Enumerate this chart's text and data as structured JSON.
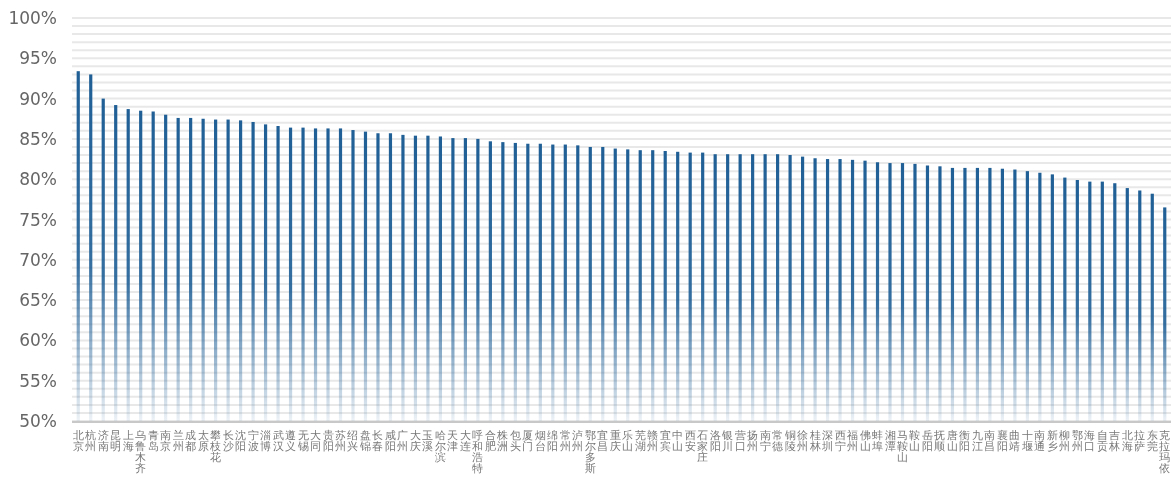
{
  "chart_data": {
    "type": "bar",
    "categories": [
      "北京",
      "杭州",
      "济南",
      "昆明",
      "上海",
      "乌鲁木齐",
      "青岛",
      "南京",
      "兰州",
      "成都",
      "太原",
      "攀枝花",
      "长沙",
      "沈阳",
      "宁波",
      "淄博",
      "武汉",
      "遵义",
      "无锡",
      "大同",
      "贵阳",
      "苏州",
      "绍兴",
      "盘锦",
      "长春",
      "咸阳",
      "广州",
      "大庆",
      "玉溪",
      "哈尔滨",
      "天津",
      "大连",
      "呼和浩特",
      "合肥",
      "株洲",
      "包头",
      "厦门",
      "烟台",
      "绵阳",
      "常州",
      "泸州",
      "鄂尔多斯",
      "宜昌",
      "重庆",
      "乐山",
      "芜湖",
      "赣州",
      "宜宾",
      "中山",
      "西安",
      "石家庄",
      "洛阳",
      "银川",
      "营口",
      "扬州",
      "南宁",
      "常德",
      "铜陵",
      "徐州",
      "桂林",
      "深圳",
      "西宁",
      "福州",
      "佛山",
      "蚌埠",
      "湘潭",
      "马鞍山",
      "鞍山",
      "岳阳",
      "抚顺",
      "唐山",
      "衡阳",
      "九江",
      "南昌",
      "襄阳",
      "曲靖",
      "十堰",
      "南通",
      "新乡",
      "柳州",
      "鄂州",
      "海口",
      "自贡",
      "吉林",
      "北海",
      "拉萨",
      "东莞",
      "克拉玛依"
    ],
    "values": [
      93.4,
      93.0,
      90.0,
      89.2,
      88.7,
      88.5,
      88.4,
      88.0,
      87.6,
      87.6,
      87.5,
      87.4,
      87.4,
      87.3,
      87.1,
      86.8,
      86.6,
      86.4,
      86.4,
      86.3,
      86.3,
      86.3,
      86.1,
      85.9,
      85.7,
      85.7,
      85.5,
      85.4,
      85.4,
      85.3,
      85.1,
      85.1,
      85.0,
      84.7,
      84.6,
      84.5,
      84.4,
      84.4,
      84.3,
      84.3,
      84.2,
      84.0,
      84.0,
      83.8,
      83.7,
      83.6,
      83.6,
      83.5,
      83.4,
      83.3,
      83.3,
      83.1,
      83.1,
      83.1,
      83.1,
      83.1,
      83.1,
      83.0,
      82.8,
      82.6,
      82.5,
      82.5,
      82.4,
      82.3,
      82.1,
      82.0,
      82.0,
      81.9,
      81.7,
      81.6,
      81.4,
      81.4,
      81.4,
      81.4,
      81.3,
      81.2,
      81.0,
      80.8,
      80.6,
      80.2,
      79.9,
      79.7,
      79.7,
      79.5,
      78.9,
      78.6,
      78.2,
      76.5
    ],
    "color": "#1f5f96",
    "ylim": [
      50,
      100
    ],
    "yticks": [
      {
        "value": 50,
        "label": "50%"
      },
      {
        "value": 51,
        "label": null
      },
      {
        "value": 52,
        "label": null
      },
      {
        "value": 53,
        "label": null
      },
      {
        "value": 54,
        "label": null
      },
      {
        "value": 55,
        "label": "55%"
      },
      {
        "value": 56,
        "label": null
      },
      {
        "value": 57,
        "label": null
      },
      {
        "value": 58,
        "label": null
      },
      {
        "value": 59,
        "label": null
      },
      {
        "value": 60,
        "label": "60%"
      },
      {
        "value": 61,
        "label": null
      },
      {
        "value": 62,
        "label": null
      },
      {
        "value": 63,
        "label": null
      },
      {
        "value": 64,
        "label": null
      },
      {
        "value": 65,
        "label": "65%"
      },
      {
        "value": 66,
        "label": null
      },
      {
        "value": 67,
        "label": null
      },
      {
        "value": 68,
        "label": null
      },
      {
        "value": 69,
        "label": null
      },
      {
        "value": 70,
        "label": "70%"
      },
      {
        "value": 71,
        "label": null
      },
      {
        "value": 72,
        "label": null
      },
      {
        "value": 73,
        "label": null
      },
      {
        "value": 74,
        "label": null
      },
      {
        "value": 75,
        "label": "75%"
      },
      {
        "value": 76,
        "label": null
      },
      {
        "value": 77,
        "label": null
      },
      {
        "value": 78,
        "label": null
      },
      {
        "value": 79,
        "label": null
      },
      {
        "value": 80,
        "label": "80%"
      },
      {
        "value": 81,
        "label": null
      },
      {
        "value": 82,
        "label": null
      },
      {
        "value": 83,
        "label": null
      },
      {
        "value": 84,
        "label": null
      },
      {
        "value": 85,
        "label": "85%"
      },
      {
        "value": 86,
        "label": null
      },
      {
        "value": 87,
        "label": null
      },
      {
        "value": 88,
        "label": null
      },
      {
        "value": 89,
        "label": null
      },
      {
        "value": 90,
        "label": "90%"
      },
      {
        "value": 91,
        "label": null
      },
      {
        "value": 92,
        "label": null
      },
      {
        "value": 93,
        "label": null
      },
      {
        "value": 94,
        "label": null
      },
      {
        "value": 95,
        "label": "95%"
      },
      {
        "value": 96,
        "label": null
      },
      {
        "value": 97,
        "label": null
      },
      {
        "value": 98,
        "label": null
      },
      {
        "value": 99,
        "label": null
      },
      {
        "value": 100,
        "label": "100%"
      }
    ],
    "grid": "y"
  }
}
